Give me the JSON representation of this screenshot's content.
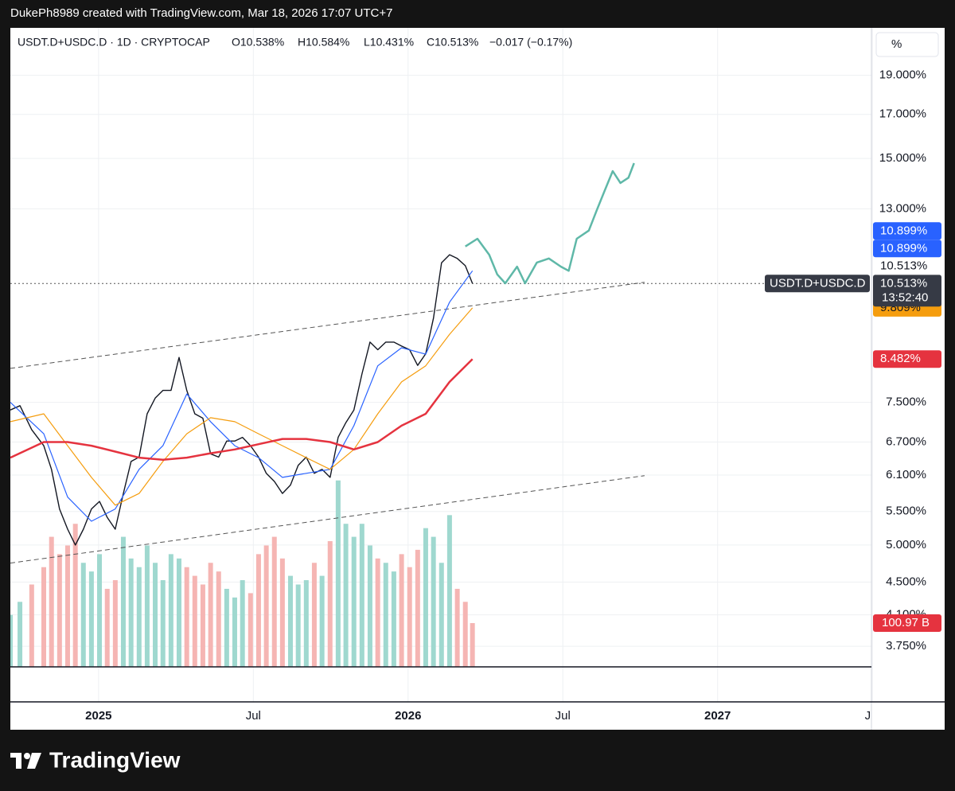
{
  "header": "DukePh8989 created with TradingView.com, Mar 18, 2026 17:07 UTC+7",
  "footer": "TradingView",
  "chart_data": {
    "type": "line",
    "legend": {
      "symbol": "USDT.D+USDC.D · 1D · CRYPTOCAP",
      "open": {
        "value": 10.538,
        "label": "O10.538%"
      },
      "high": {
        "value": 10.584,
        "label": "H10.584%"
      },
      "low": {
        "value": 10.431,
        "label": "L10.431%"
      },
      "close": {
        "value": 10.513,
        "label": "C10.513%"
      },
      "change": {
        "value": -0.017,
        "label": "−0.017 (−0.17%)"
      }
    },
    "unit_label": "%",
    "log_scale": true,
    "grid": true,
    "xlim": [
      2024.715,
      2027.497
    ],
    "xticks": [
      {
        "value": 2025,
        "label": "2025"
      },
      {
        "value": 2025.5,
        "label": "Jul"
      },
      {
        "value": 2026,
        "label": "2026"
      },
      {
        "value": 2026.5,
        "label": "Jul"
      },
      {
        "value": 2027,
        "label": "2027"
      },
      {
        "value": 2027.5,
        "label": "Jul"
      }
    ],
    "ylim": [
      3.537,
      21.74
    ],
    "yticks": [
      {
        "value": 3.75,
        "label": "3.750%"
      },
      {
        "value": 4.1,
        "label": "4.100%"
      },
      {
        "value": 4.5,
        "label": "4.500%"
      },
      {
        "value": 5,
        "label": "5.000%"
      },
      {
        "value": 5.5,
        "label": "5.500%"
      },
      {
        "value": 6.1,
        "label": "6.100%"
      },
      {
        "value": 6.7,
        "label": "6.700%"
      },
      {
        "value": 7.5,
        "label": "7.500%"
      },
      {
        "value": 13,
        "label": "13.000%"
      },
      {
        "value": 15,
        "label": "15.000%"
      },
      {
        "value": 17,
        "label": "17.000%"
      },
      {
        "value": 19,
        "label": "19.000%"
      }
    ],
    "series": [
      {
        "color": "#131722",
        "width": 1.4,
        "x": [
          2024.715,
          2024.746,
          2024.784,
          2024.823,
          2024.848,
          2024.874,
          2024.9,
          2024.925,
          2024.951,
          2024.977,
          2025.003,
          2025.028,
          2025.054,
          2025.08,
          2025.105,
          2025.131,
          2025.157,
          2025.183,
          2025.208,
          2025.234,
          2025.26,
          2025.285,
          2025.311,
          2025.337,
          2025.362,
          2025.388,
          2025.414,
          2025.44,
          2025.465,
          2025.491,
          2025.517,
          2025.542,
          2025.568,
          2025.594,
          2025.62,
          2025.645,
          2025.671,
          2025.697,
          2025.722,
          2025.748,
          2025.774,
          2025.799,
          2025.825,
          2025.851,
          2025.877,
          2025.902,
          2025.928,
          2025.954,
          2025.979,
          2026.005,
          2026.031,
          2026.057,
          2026.082,
          2026.108,
          2026.134,
          2026.159,
          2026.185,
          2026.208
        ],
        "values": [
          7.34,
          7.43,
          6.94,
          6.63,
          6.2,
          5.54,
          5.23,
          5.0,
          5.23,
          5.54,
          5.66,
          5.41,
          5.23,
          5.79,
          6.34,
          6.42,
          7.26,
          7.59,
          7.76,
          7.76,
          8.52,
          7.76,
          7.26,
          7.17,
          6.48,
          6.42,
          6.72,
          6.72,
          6.79,
          6.63,
          6.42,
          6.13,
          5.99,
          5.79,
          5.93,
          6.27,
          6.42,
          6.13,
          6.2,
          6.06,
          6.79,
          7.08,
          7.34,
          8.13,
          8.9,
          8.71,
          8.9,
          8.9,
          8.8,
          8.71,
          8.33,
          8.61,
          9.53,
          11.15,
          11.41,
          11.29,
          11.06,
          10.513
        ]
      },
      {
        "color": "#2962ff",
        "width": 1.2,
        "x": [
          2024.715,
          2024.823,
          2024.9,
          2024.977,
          2025.054,
          2025.131,
          2025.208,
          2025.285,
          2025.362,
          2025.44,
          2025.517,
          2025.594,
          2025.671,
          2025.748,
          2025.825,
          2025.902,
          2025.979,
          2026.057,
          2026.134,
          2026.208
        ],
        "values": [
          7.5,
          6.86,
          5.73,
          5.35,
          5.54,
          6.2,
          6.63,
          7.68,
          7.1,
          6.63,
          6.41,
          6.06,
          6.13,
          6.2,
          7.02,
          8.32,
          8.76,
          8.6,
          9.97,
          10.899
        ]
      },
      {
        "color": "#f59d0e",
        "width": 1.2,
        "x": [
          2024.715,
          2024.823,
          2024.9,
          2024.977,
          2025.054,
          2025.131,
          2025.208,
          2025.285,
          2025.362,
          2025.44,
          2025.517,
          2025.594,
          2025.671,
          2025.748,
          2025.825,
          2025.902,
          2025.979,
          2026.057,
          2026.134,
          2026.208
        ],
        "values": [
          7.1,
          7.26,
          6.63,
          6.06,
          5.6,
          5.79,
          6.34,
          6.86,
          7.18,
          7.1,
          6.86,
          6.63,
          6.41,
          6.2,
          6.56,
          7.26,
          7.95,
          8.32,
          9.1,
          9.809
        ]
      },
      {
        "color": "#e5333f",
        "width": 2.5,
        "x": [
          2024.715,
          2024.823,
          2024.9,
          2024.977,
          2025.054,
          2025.131,
          2025.208,
          2025.285,
          2025.362,
          2025.44,
          2025.517,
          2025.594,
          2025.671,
          2025.748,
          2025.825,
          2025.902,
          2025.979,
          2026.057,
          2026.134,
          2026.208
        ],
        "values": [
          6.41,
          6.7,
          6.7,
          6.63,
          6.52,
          6.41,
          6.37,
          6.41,
          6.49,
          6.56,
          6.66,
          6.76,
          6.76,
          6.7,
          6.56,
          6.7,
          7.02,
          7.26,
          7.95,
          8.482
        ]
      },
      {
        "color": "#5fb8a8",
        "width": 2.5,
        "x": [
          2026.185,
          2026.224,
          2026.262,
          2026.288,
          2026.314,
          2026.352,
          2026.378,
          2026.416,
          2026.455,
          2026.494,
          2026.519,
          2026.545,
          2026.584,
          2026.609,
          2026.635,
          2026.661,
          2026.686,
          2026.712,
          2026.73
        ],
        "values": [
          11.68,
          11.94,
          11.41,
          10.79,
          10.52,
          11.03,
          10.52,
          11.16,
          11.29,
          11.03,
          10.899,
          11.94,
          12.22,
          12.93,
          13.68,
          14.47,
          13.99,
          14.2,
          14.8
        ]
      }
    ],
    "trendlines": [
      {
        "color": "#555555",
        "x": [
          2024.715,
          2026.764
        ],
        "values": [
          8.26,
          10.55
        ]
      },
      {
        "color": "#555555",
        "x": [
          2024.715,
          2026.764
        ],
        "values": [
          4.75,
          6.09
        ]
      }
    ],
    "volume": {
      "up_color": "#9fd8cf",
      "down_color": "#f5b5b3",
      "vlim": [
        0,
        1474
      ],
      "values": [
        120,
        150,
        190,
        230,
        300,
        260,
        280,
        330,
        240,
        220,
        260,
        180,
        200,
        300,
        250,
        230,
        280,
        240,
        200,
        260,
        250,
        230,
        210,
        190,
        240,
        220,
        180,
        160,
        200,
        170,
        260,
        280,
        300,
        250,
        210,
        190,
        200,
        240,
        210,
        290,
        430,
        330,
        300,
        330,
        280,
        250,
        240,
        220,
        260,
        230,
        270,
        320,
        300,
        240,
        350,
        180,
        150,
        100.97
      ],
      "badge": {
        "value": 100.97,
        "label": "100.97 B",
        "color": "#e5333f"
      }
    },
    "badges": [
      {
        "value": 10.899,
        "label": "10.899%",
        "color": "#2962ff"
      },
      {
        "value": 10.899,
        "label": "10.899%",
        "color": "#2962ff"
      },
      {
        "value": 10.513,
        "label": "10.513%",
        "color": "#ffffff",
        "text_color": "#131722"
      },
      {
        "value": 10.513,
        "label": "10.513%",
        "color": "#363a45",
        "name": "USDT.D+USDC.D",
        "countdown": "13:52:40"
      },
      {
        "value": 9.809,
        "label": "9.809%",
        "color": "#f59d0e",
        "text_color": "#131722"
      },
      {
        "value": 8.482,
        "label": "8.482%",
        "color": "#e5333f"
      }
    ]
  }
}
